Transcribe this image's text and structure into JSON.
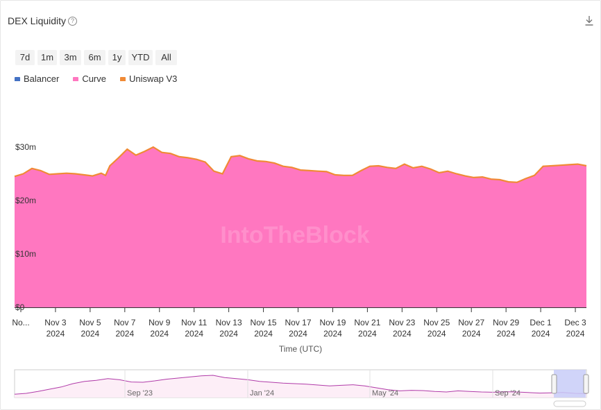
{
  "header": {
    "title": "DEX Liquidity",
    "help_glyph": "?"
  },
  "range_buttons": [
    "7d",
    "1m",
    "3m",
    "6m",
    "1y",
    "YTD",
    "All"
  ],
  "watermark": "IntoTheBlock",
  "chart_data": {
    "type": "area",
    "title": "DEX Liquidity",
    "xlabel": "Time (UTC)",
    "ylabel": "",
    "ylim": [
      0,
      30000000
    ],
    "y_ticks": [
      {
        "value": 0,
        "label": "$0"
      },
      {
        "value": 10000000,
        "label": "$10m"
      },
      {
        "value": 20000000,
        "label": "$20m"
      },
      {
        "value": 30000000,
        "label": "$30m"
      }
    ],
    "x_range": [
      "2024-11-01",
      "2024-12-04"
    ],
    "x_ticks": [
      {
        "date": "2024-11-01",
        "line1": "No...",
        "line2": ""
      },
      {
        "date": "2024-11-03",
        "line1": "Nov 3",
        "line2": "2024"
      },
      {
        "date": "2024-11-05",
        "line1": "Nov 5",
        "line2": "2024"
      },
      {
        "date": "2024-11-07",
        "line1": "Nov 7",
        "line2": "2024"
      },
      {
        "date": "2024-11-09",
        "line1": "Nov 9",
        "line2": "2024"
      },
      {
        "date": "2024-11-11",
        "line1": "Nov 11",
        "line2": "2024"
      },
      {
        "date": "2024-11-13",
        "line1": "Nov 13",
        "line2": "2024"
      },
      {
        "date": "2024-11-15",
        "line1": "Nov 15",
        "line2": "2024"
      },
      {
        "date": "2024-11-17",
        "line1": "Nov 17",
        "line2": "2024"
      },
      {
        "date": "2024-11-19",
        "line1": "Nov 19",
        "line2": "2024"
      },
      {
        "date": "2024-11-21",
        "line1": "Nov 21",
        "line2": "2024"
      },
      {
        "date": "2024-11-23",
        "line1": "Nov 23",
        "line2": "2024"
      },
      {
        "date": "2024-11-25",
        "line1": "Nov 25",
        "line2": "2024"
      },
      {
        "date": "2024-11-27",
        "line1": "Nov 27",
        "line2": "2024"
      },
      {
        "date": "2024-11-29",
        "line1": "Nov 29",
        "line2": "2024"
      },
      {
        "date": "2024-12-01",
        "line1": "Dec 1",
        "line2": "2024"
      },
      {
        "date": "2024-12-03",
        "line1": "Dec 3",
        "line2": "2024"
      }
    ],
    "legend": {
      "placement": "top-left"
    },
    "series": [
      {
        "name": "Balancer",
        "color": "#4472c4",
        "x": [],
        "y": []
      },
      {
        "name": "Curve",
        "color": "#ff77c0",
        "x": [
          "2024-11-01",
          "2024-11-01T12:00",
          "2024-11-02",
          "2024-11-02T12:00",
          "2024-11-03",
          "2024-11-03T12:00",
          "2024-11-04",
          "2024-11-04T12:00",
          "2024-11-05",
          "2024-11-05T12:00",
          "2024-11-06",
          "2024-11-06T06:00",
          "2024-11-06T12:00",
          "2024-11-07",
          "2024-11-07T12:00",
          "2024-11-08",
          "2024-11-08T12:00",
          "2024-11-09",
          "2024-11-09T12:00",
          "2024-11-10",
          "2024-11-10T12:00",
          "2024-11-11",
          "2024-11-11T12:00",
          "2024-11-12",
          "2024-11-12T12:00",
          "2024-11-13",
          "2024-11-13T12:00",
          "2024-11-14",
          "2024-11-14T12:00",
          "2024-11-15",
          "2024-11-15T12:00",
          "2024-11-16",
          "2024-11-16T12:00",
          "2024-11-17",
          "2024-11-17T12:00",
          "2024-11-18",
          "2024-11-18T12:00",
          "2024-11-19",
          "2024-11-19T12:00",
          "2024-11-20",
          "2024-11-20T12:00",
          "2024-11-21",
          "2024-11-21T12:00",
          "2024-11-22",
          "2024-11-22T12:00",
          "2024-11-23",
          "2024-11-23T12:00",
          "2024-11-24",
          "2024-11-24T12:00",
          "2024-11-25",
          "2024-11-25T12:00",
          "2024-11-26",
          "2024-11-26T12:00",
          "2024-11-27",
          "2024-11-27T12:00",
          "2024-11-28",
          "2024-11-28T12:00",
          "2024-11-29",
          "2024-11-29T12:00",
          "2024-11-30",
          "2024-11-30T12:00",
          "2024-12-01",
          "2024-12-01T12:00",
          "2024-12-02",
          "2024-12-02T12:00",
          "2024-12-03",
          "2024-12-03T12:00",
          "2024-12-04"
        ],
        "y": [
          24500000,
          25000000,
          26000000,
          25600000,
          24900000,
          25000000,
          25100000,
          25000000,
          24800000,
          24600000,
          25100000,
          24700000,
          26500000,
          28000000,
          29600000,
          28500000,
          29200000,
          30000000,
          29000000,
          28800000,
          28200000,
          28000000,
          27700000,
          27200000,
          25500000,
          25000000,
          28200000,
          28400000,
          27800000,
          27400000,
          27300000,
          27000000,
          26400000,
          26200000,
          25700000,
          25600000,
          25500000,
          25400000,
          24800000,
          24700000,
          24700000,
          25600000,
          26400000,
          26500000,
          26200000,
          26000000,
          26800000,
          26100000,
          26400000,
          25900000,
          25200000,
          25500000,
          25000000,
          24600000,
          24300000,
          24400000,
          24000000,
          23900000,
          23500000,
          23400000,
          24100000,
          24700000,
          26400000,
          26500000,
          26600000,
          26700000,
          26800000,
          26500000
        ]
      },
      {
        "name": "Uniswap V3",
        "color": "#f08a35",
        "x": [],
        "y": []
      }
    ],
    "navigator": {
      "labels": [
        "Sep '23",
        "Jan '24",
        "May '24",
        "Sep '24"
      ],
      "values": [
        0.12,
        0.15,
        0.22,
        0.3,
        0.38,
        0.5,
        0.58,
        0.62,
        0.68,
        0.64,
        0.56,
        0.55,
        0.6,
        0.66,
        0.7,
        0.74,
        0.78,
        0.8,
        0.72,
        0.68,
        0.64,
        0.58,
        0.55,
        0.52,
        0.5,
        0.48,
        0.45,
        0.42,
        0.44,
        0.46,
        0.42,
        0.35,
        0.28,
        0.24,
        0.26,
        0.25,
        0.22,
        0.2,
        0.24,
        0.22,
        0.2,
        0.19,
        0.21,
        0.2,
        0.18,
        0.16,
        0.17,
        0.18,
        0.15,
        0.14
      ]
    }
  }
}
